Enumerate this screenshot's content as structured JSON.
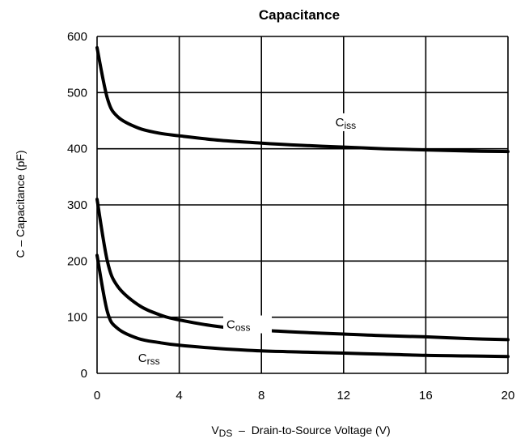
{
  "chart_data": {
    "type": "line",
    "title": "Capacitance",
    "xlabel": {
      "main": "V",
      "sub": "DS",
      "rest": "  –  Drain-to-Source Voltage (V)"
    },
    "ylabel": "C  –  Capacitance (pF)",
    "xlim": [
      0,
      20
    ],
    "ylim": [
      0,
      600
    ],
    "xticks": [
      0,
      4,
      8,
      12,
      16,
      20
    ],
    "yticks": [
      0,
      100,
      200,
      300,
      400,
      500,
      600
    ],
    "grid": true,
    "series": [
      {
        "name": "Ciss",
        "label_main": "C",
        "label_sub": "iss",
        "x": [
          0,
          0.5,
          1,
          2,
          3,
          4,
          6,
          8,
          10,
          12,
          14,
          16,
          18,
          20
        ],
        "y": [
          580,
          490,
          457,
          437,
          428,
          423,
          415,
          410,
          406,
          403,
          400,
          398,
          396,
          395
        ]
      },
      {
        "name": "Coss",
        "label_main": "C",
        "label_sub": "oss",
        "x": [
          0,
          0.5,
          1,
          2,
          3,
          4,
          6,
          8,
          10,
          12,
          14,
          16,
          18,
          20
        ],
        "y": [
          310,
          200,
          155,
          122,
          105,
          95,
          83,
          77,
          73,
          70,
          67,
          65,
          62,
          60
        ]
      },
      {
        "name": "Crss",
        "label_main": "C",
        "label_sub": "rss",
        "x": [
          0,
          0.5,
          1,
          2,
          3,
          4,
          6,
          8,
          10,
          12,
          14,
          16,
          18,
          20
        ],
        "y": [
          210,
          110,
          80,
          62,
          55,
          50,
          44,
          40,
          38,
          36,
          34,
          32,
          31,
          30
        ]
      }
    ]
  }
}
